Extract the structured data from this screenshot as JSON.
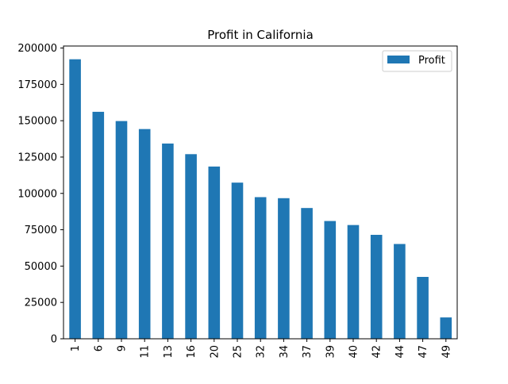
{
  "chart_data": {
    "type": "bar",
    "title": "Profit in California",
    "xlabel": "",
    "ylabel": "",
    "categories": [
      "1",
      "6",
      "9",
      "11",
      "13",
      "16",
      "20",
      "25",
      "32",
      "34",
      "37",
      "39",
      "40",
      "42",
      "44",
      "47",
      "49"
    ],
    "series": [
      {
        "name": "Profit",
        "color": "#1f77b4",
        "values": [
          192262,
          156123,
          149760,
          144259,
          134307,
          126993,
          118474,
          107404,
          97427,
          96712,
          89949,
          81006,
          78240,
          71498,
          65200,
          42560,
          14681
        ]
      }
    ],
    "ylim": [
      0,
      201376
    ],
    "yticks": [
      0,
      25000,
      50000,
      75000,
      100000,
      125000,
      150000,
      175000,
      200000
    ],
    "ytick_labels": [
      "0",
      "25000",
      "50000",
      "75000",
      "100000",
      "125000",
      "150000",
      "175000",
      "200000"
    ],
    "grid": false,
    "legend_position": "top-right"
  }
}
